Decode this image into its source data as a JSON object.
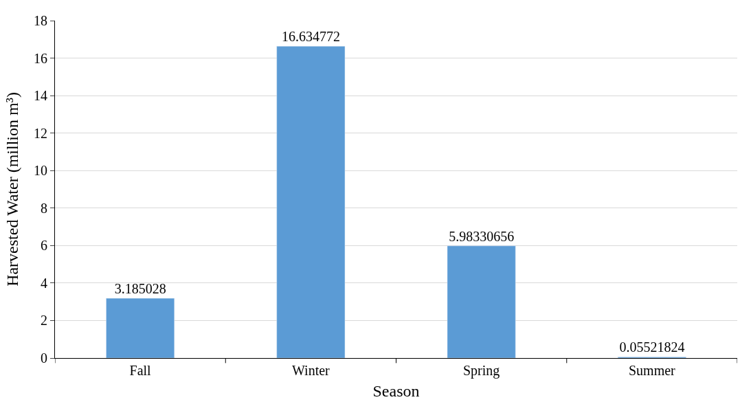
{
  "chart_data": {
    "type": "bar",
    "xlabel": "Season",
    "ylabel": "Harvested Water (million m³)",
    "categories": [
      "Fall",
      "Winter",
      "Spring",
      "Summer"
    ],
    "values": [
      3.185028,
      16.634772,
      5.98330656,
      0.05521824
    ],
    "color": "#5b9bd5",
    "data_labels": true,
    "ylim": [
      0,
      18
    ],
    "yticks": [
      0,
      2,
      4,
      6,
      8,
      10,
      12,
      14,
      16,
      18
    ],
    "grid": "y",
    "legend": false
  }
}
